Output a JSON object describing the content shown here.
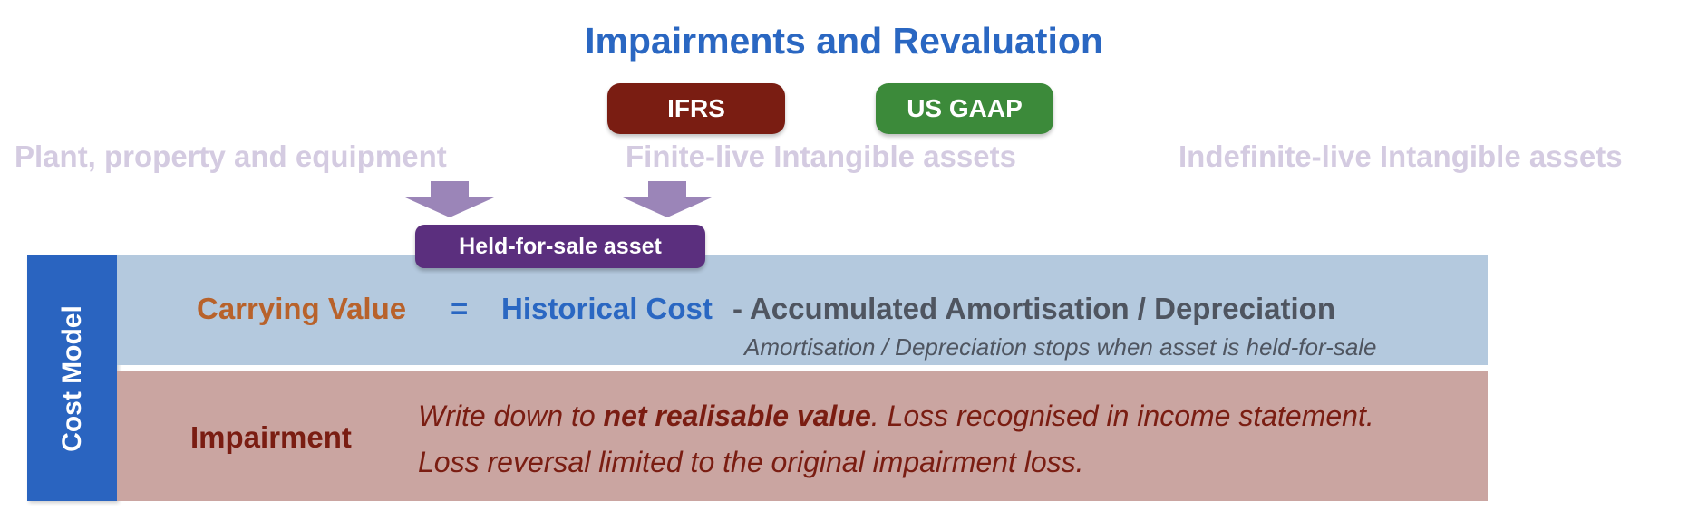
{
  "title": "Impairments and Revaluation",
  "badges": {
    "ifrs": "IFRS",
    "us_gaap": "US GAAP"
  },
  "categories": {
    "ppe": "Plant, property and equipment",
    "finite": "Finite-live Intangible assets",
    "indefinite": "Indefinite-live Intangible assets"
  },
  "held_for_sale": "Held-for-sale asset",
  "cost_model": {
    "label": "Cost Model",
    "carrying_value": "Carrying Value",
    "equals": "=",
    "historical_cost": "Historical Cost",
    "accumulated": "- Accumulated Amortisation / Depreciation",
    "stops_note": "Amortisation / Depreciation stops when asset is held-for-sale",
    "impairment": "Impairment",
    "impairment_line1_pre": "Write down to ",
    "impairment_line1_bold": "net realisable value",
    "impairment_line1_post": ". Loss recognised in income statement.",
    "impairment_line2": "Loss reversal limited to the original impairment loss."
  },
  "colors": {
    "title": "#2a67c2",
    "ifrs": "#7a1d12",
    "us_gaap": "#3c8a3a",
    "held_for_sale": "#5b2f7e",
    "arrow": "#9b85b8",
    "category_text": "#d4cbe1",
    "cost_model_bar": "#2a64c0",
    "band_blue": "#b4c9de",
    "band_red": "#caa5a1",
    "carrying_value": "#b8622b",
    "impairment": "#7a1d12"
  }
}
